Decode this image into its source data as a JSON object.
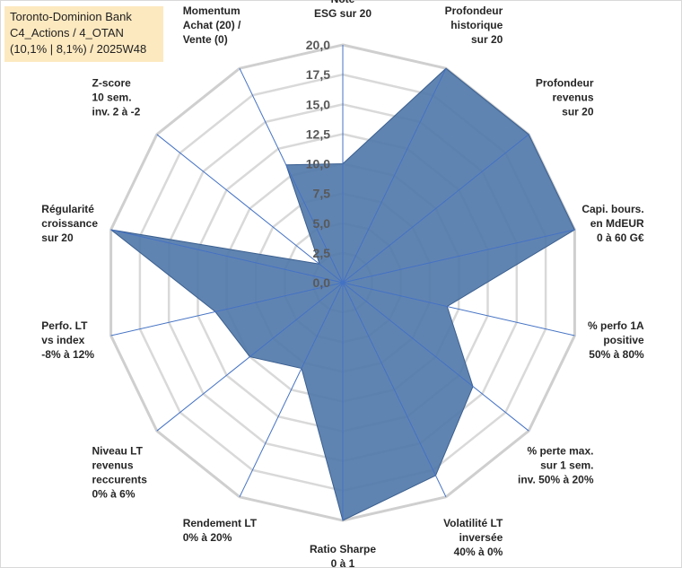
{
  "chart_data": {
    "type": "radar",
    "title_lines": [
      "Toronto-Dominion Bank",
      "C4_Actions / 4_OTAN",
      "(10,1% | 8,1%) / 2025W48"
    ],
    "radial_ticks": [
      "0,0",
      "2,5",
      "5,0",
      "7,5",
      "10,0",
      "12,5",
      "15,0",
      "17,5",
      "20,0"
    ],
    "rmin": 0,
    "rmax": 20,
    "axes": [
      {
        "label": [
          "Note",
          "ESG sur 20"
        ],
        "value": 10
      },
      {
        "label": [
          "Profondeur",
          "historique",
          "sur 20"
        ],
        "value": 20
      },
      {
        "label": [
          "Profondeur",
          "revenus",
          "sur 20"
        ],
        "value": 20
      },
      {
        "label": [
          "Capi. bours.",
          "en MdEUR",
          "0 à 60 G€"
        ],
        "value": 20
      },
      {
        "label": [
          "% perfo 1A",
          "positive",
          "50% à 80%"
        ],
        "value": 9
      },
      {
        "label": [
          "% perte max.",
          "sur 1 sem.",
          "inv. 50% à 20%"
        ],
        "value": 14
      },
      {
        "label": [
          "Volatilité LT",
          "inversée",
          "40% à 0%"
        ],
        "value": 18
      },
      {
        "label": [
          "Ratio Sharpe",
          "0 à 1"
        ],
        "value": 20
      },
      {
        "label": [
          "Rendement LT",
          "0% à 20%"
        ],
        "value": 8
      },
      {
        "label": [
          "Niveau LT",
          "revenus",
          "reccurents",
          "0% à 6%"
        ],
        "value": 10
      },
      {
        "label": [
          "Perfo. LT",
          "vs index",
          "-8% à 12%"
        ],
        "value": 11
      },
      {
        "label": [
          "Régularité",
          "croissance",
          "sur 20"
        ],
        "value": 20
      },
      {
        "label": [
          "Z-score",
          "10 sem.",
          "inv. 2 à -2"
        ],
        "value": 2.5
      },
      {
        "label": [
          "Momentum",
          "Achat (20) /",
          "Vente (0)"
        ],
        "value": 11
      }
    ],
    "series": [
      {
        "name": "Toronto-Dominion Bank",
        "color": "#4f77a8"
      }
    ],
    "grid": true,
    "grid_color": "#d9d9d9",
    "axis_line_color": "#4472c4",
    "fill_color": "#4f77a8"
  }
}
